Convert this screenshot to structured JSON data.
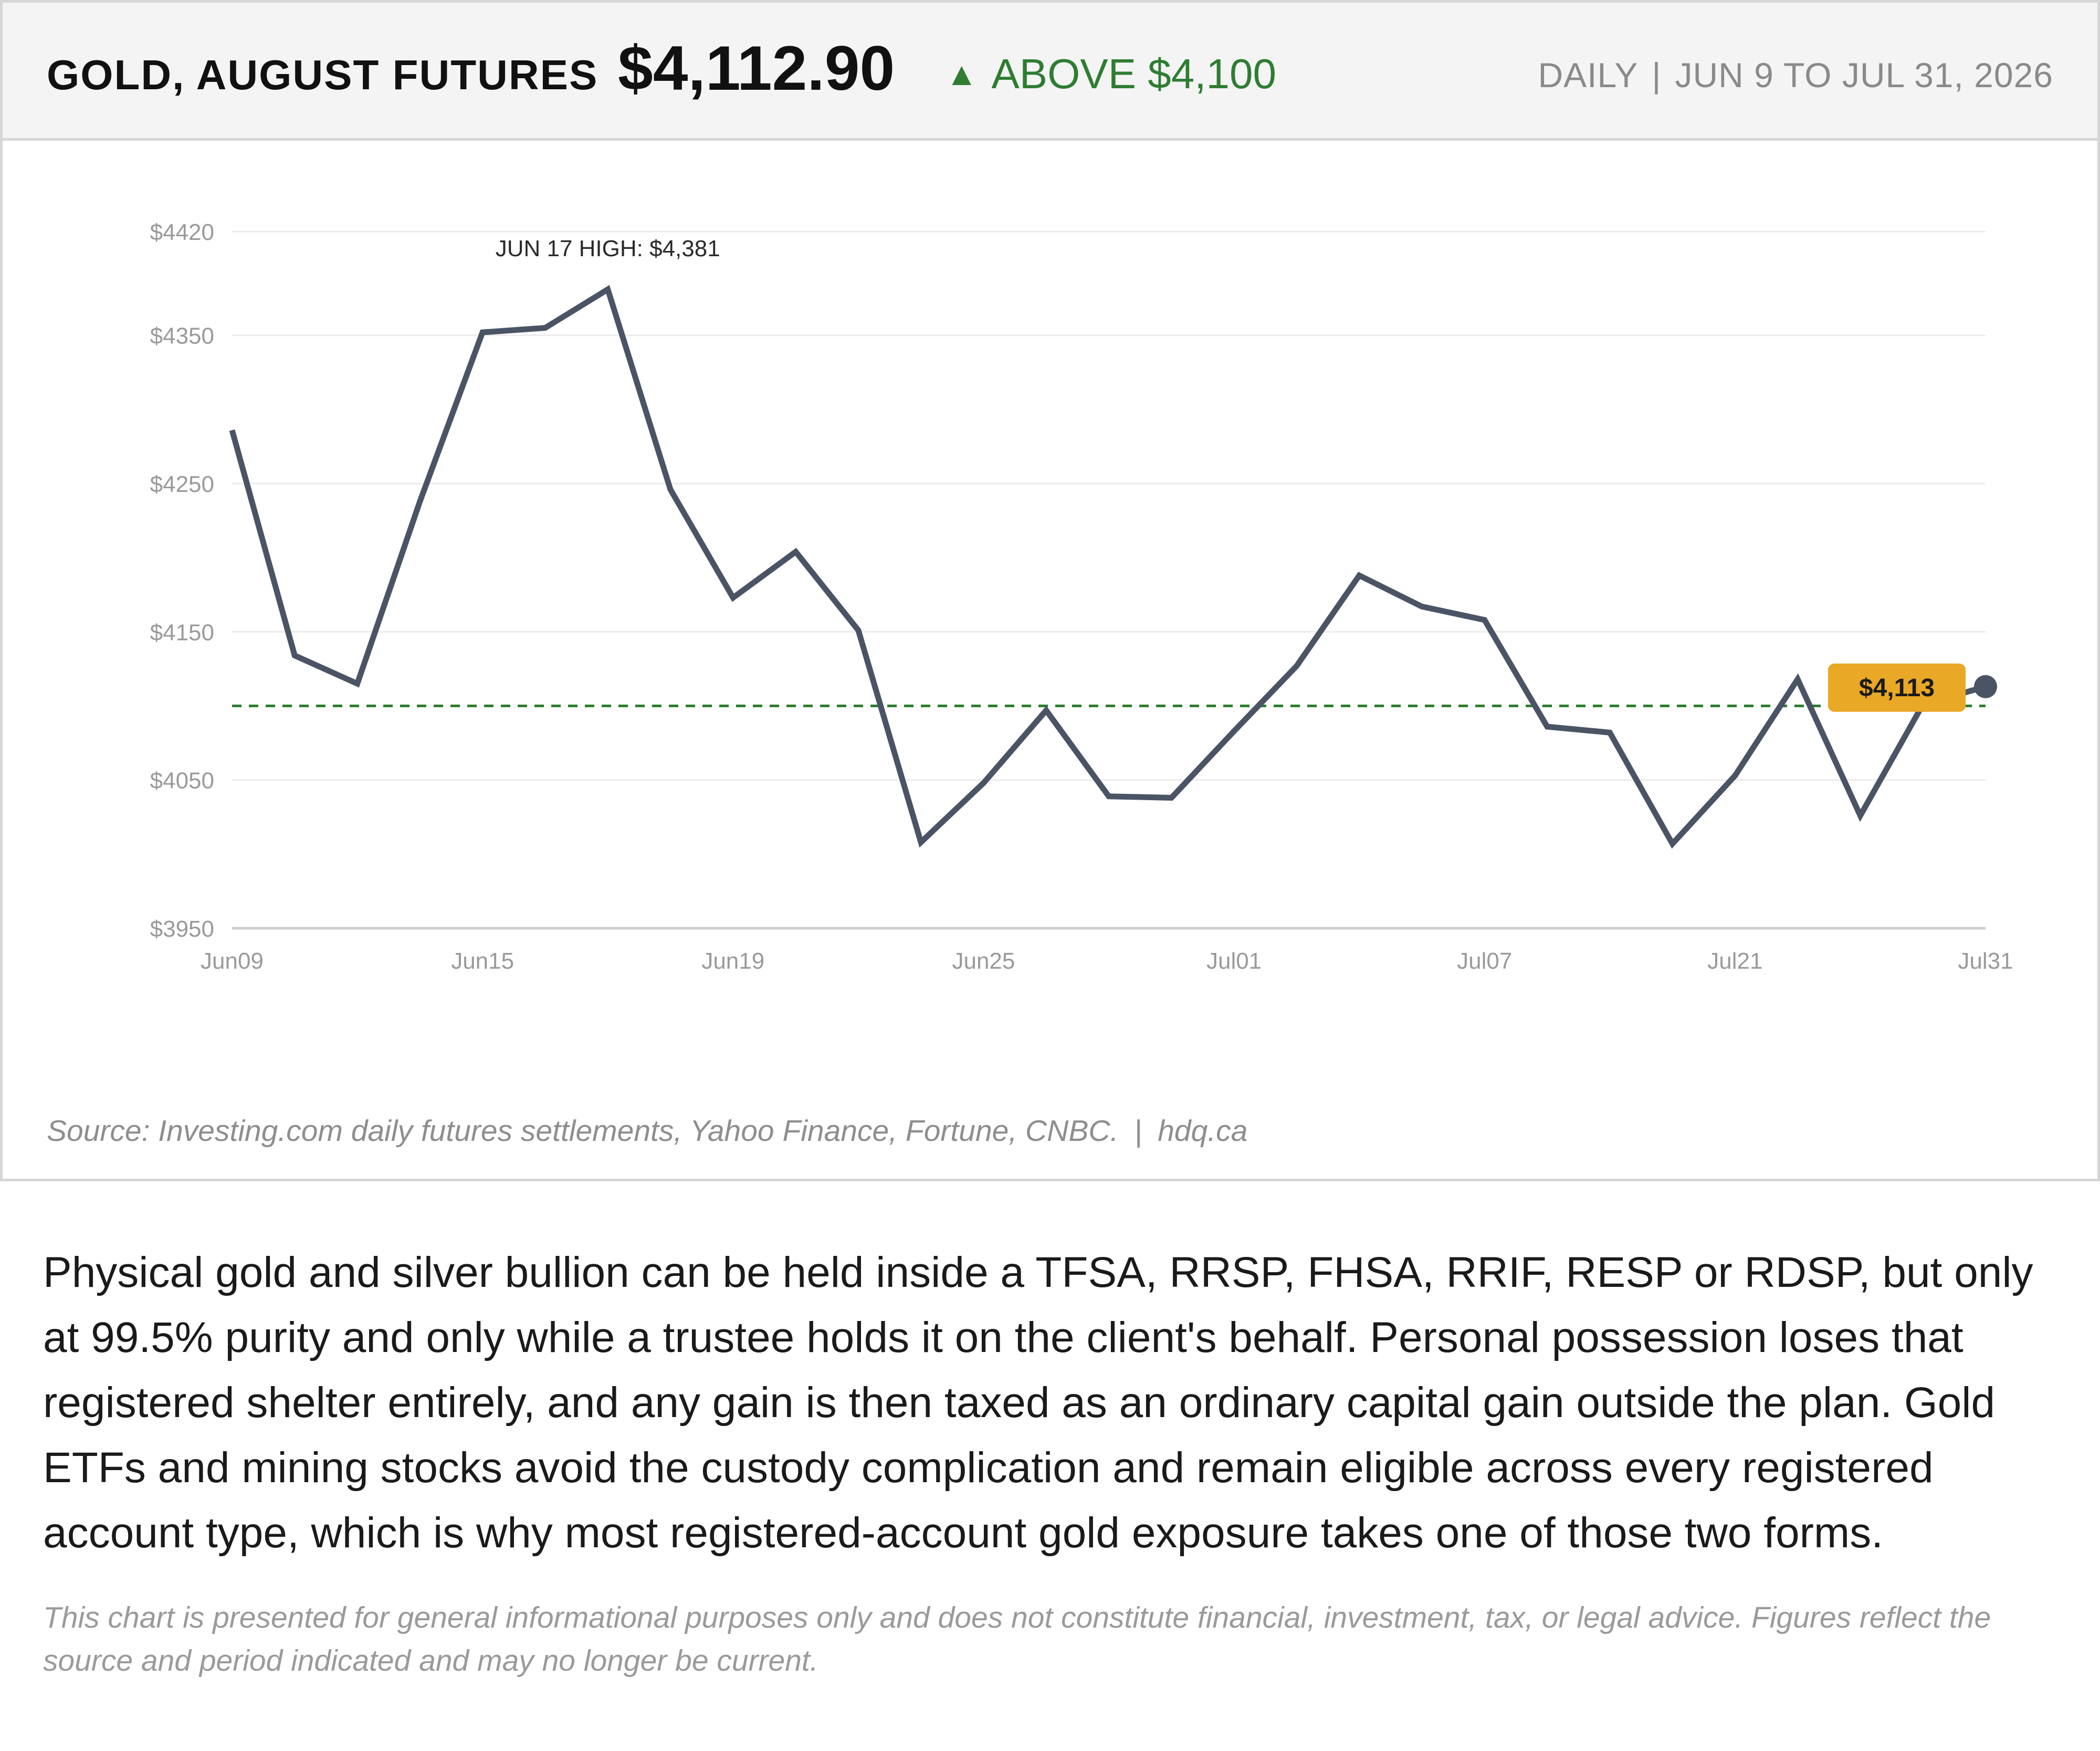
{
  "header": {
    "title": "GOLD, AUGUST FUTURES",
    "price": "$4,112.90",
    "status_icon": "triangle-up-icon",
    "status_symbol": "▲",
    "status_text": "ABOVE $4,100",
    "frequency": "DAILY",
    "separator": "|",
    "range": "JUN 9 TO JUL 31, 2026"
  },
  "chart_data": {
    "type": "line",
    "title": "",
    "xlabel": "",
    "ylabel": "",
    "ylim": [
      3950,
      4420
    ],
    "y_ticks": [
      3950,
      4050,
      4150,
      4250,
      4350,
      4420
    ],
    "y_tick_labels": [
      "$3950",
      "$4050",
      "$4150",
      "$4250",
      "$4350",
      "$4420"
    ],
    "x_tick_labels": [
      "Jun09",
      "Jun15",
      "Jun19",
      "Jun25",
      "Jul01",
      "Jul07",
      "Jul21",
      "Jul31"
    ],
    "grid": true,
    "x": [
      "Jun09",
      "Jun10",
      "Jun11",
      "Jun12",
      "Jun15",
      "Jun16",
      "Jun17",
      "Jun18",
      "Jun19",
      "Jun22",
      "Jun23",
      "Jun24",
      "Jun25",
      "Jun26",
      "Jun29",
      "Jun30",
      "Jul01",
      "Jul02",
      "Jul03",
      "Jul06",
      "Jul07",
      "Jul08",
      "Jul09",
      "Jul10",
      "Jul21",
      "Jul22",
      "Jul23",
      "Jul24",
      "Jul31"
    ],
    "series": [
      {
        "values": [
          4286,
          4134,
          4115,
          4238,
          4352,
          4355,
          4381,
          4246,
          4173,
          4204,
          4151,
          4008,
          4048,
          4097,
          4039,
          4038,
          4083,
          4127,
          4188,
          4167,
          4158,
          4086,
          4082,
          4007,
          4053,
          4118,
          4026,
          4101,
          4113
        ]
      }
    ],
    "reference_line": {
      "value": 4100,
      "style": "dashed",
      "color": "#2e7d32"
    },
    "annotations": [
      {
        "text": "JUN 17 HIGH: $4,381",
        "x": "Jun17",
        "y": 4381
      }
    ],
    "last_value_label": {
      "text": "$4,113",
      "x": "Jul31",
      "y": 4113
    },
    "colors": {
      "line": "#4a5464",
      "grid": "#ececec",
      "axis": "#cfcfcf",
      "reference": "#2e7d32",
      "badge": "#e9a825",
      "tick_text": "#9a9a9a"
    }
  },
  "source": {
    "text": "Source: Investing.com daily futures settlements, Yahoo Finance, Fortune, CNBC.",
    "separator": "|",
    "site": "hdq.ca"
  },
  "body_text": "Physical gold and silver bullion can be held inside a TFSA, RRSP, FHSA, RRIF, RESP or RDSP, but only at 99.5% purity and only while a trustee holds it on the client's behalf. Personal possession loses that registered shelter entirely, and any gain is then taxed as an ordinary capital gain outside the plan. Gold ETFs and mining stocks avoid the custody complication and remain eligible across every registered account type, which is why most registered-account gold exposure takes one of those two forms.",
  "disclaimer": "This chart is presented for general informational purposes only and does not constitute financial, investment, tax, or legal advice. Figures reflect the source and period indicated and may no longer be current."
}
